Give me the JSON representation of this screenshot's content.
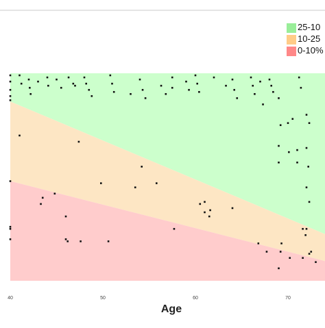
{
  "chart_data": {
    "type": "scatter",
    "xlabel": "Age",
    "ylabel": "",
    "xlim": [
      40,
      74
    ],
    "ylim": [
      0,
      100
    ],
    "x_ticks": [
      "40",
      "50",
      "60",
      "70"
    ],
    "legend_position": "top-right",
    "bands": [
      {
        "name": "25-10",
        "color": "#ccffcc",
        "legend_color": "#99ee99"
      },
      {
        "name": "10-25",
        "color": "#fde6c4",
        "legend_color": "#ffcc88"
      },
      {
        "name": "0-10%",
        "color": "#ffcccc",
        "legend_color": "#ff8888"
      }
    ],
    "band_boundaries": {
      "upper": {
        "at_40": 86.4,
        "at_74": 22.5
      },
      "lower": {
        "at_40": 48.0,
        "at_74": 9.5
      }
    },
    "points": [
      {
        "x": 40.0,
        "y": 99
      },
      {
        "x": 40.0,
        "y": 96
      },
      {
        "x": 40.0,
        "y": 92
      },
      {
        "x": 40.0,
        "y": 89
      },
      {
        "x": 40.0,
        "y": 87
      },
      {
        "x": 40.0,
        "y": 48
      },
      {
        "x": 40.0,
        "y": 26
      },
      {
        "x": 40.0,
        "y": 25
      },
      {
        "x": 40.0,
        "y": 20
      },
      {
        "x": 41.0,
        "y": 99
      },
      {
        "x": 41.2,
        "y": 95
      },
      {
        "x": 41.0,
        "y": 70
      },
      {
        "x": 42.0,
        "y": 97
      },
      {
        "x": 42.1,
        "y": 93
      },
      {
        "x": 42.2,
        "y": 90
      },
      {
        "x": 43.0,
        "y": 96
      },
      {
        "x": 43.5,
        "y": 40
      },
      {
        "x": 43.3,
        "y": 37
      },
      {
        "x": 44.0,
        "y": 98
      },
      {
        "x": 44.1,
        "y": 94
      },
      {
        "x": 44.8,
        "y": 42
      },
      {
        "x": 45.0,
        "y": 97
      },
      {
        "x": 45.5,
        "y": 93
      },
      {
        "x": 46.0,
        "y": 31
      },
      {
        "x": 46.3,
        "y": 98
      },
      {
        "x": 46.8,
        "y": 95
      },
      {
        "x": 46.0,
        "y": 20
      },
      {
        "x": 46.2,
        "y": 19
      },
      {
        "x": 47.0,
        "y": 94
      },
      {
        "x": 47.4,
        "y": 67
      },
      {
        "x": 47.6,
        "y": 19
      },
      {
        "x": 48.0,
        "y": 98
      },
      {
        "x": 48.2,
        "y": 95
      },
      {
        "x": 48.5,
        "y": 92
      },
      {
        "x": 48.8,
        "y": 89
      },
      {
        "x": 49.8,
        "y": 47
      },
      {
        "x": 50.6,
        "y": 19
      },
      {
        "x": 50.8,
        "y": 99
      },
      {
        "x": 51.0,
        "y": 95
      },
      {
        "x": 51.2,
        "y": 91
      },
      {
        "x": 53.0,
        "y": 90
      },
      {
        "x": 53.5,
        "y": 45
      },
      {
        "x": 54.0,
        "y": 97
      },
      {
        "x": 54.3,
        "y": 92
      },
      {
        "x": 54.6,
        "y": 88
      },
      {
        "x": 54.2,
        "y": 55
      },
      {
        "x": 55.8,
        "y": 47
      },
      {
        "x": 56.3,
        "y": 94
      },
      {
        "x": 56.8,
        "y": 90
      },
      {
        "x": 57.5,
        "y": 98
      },
      {
        "x": 57.5,
        "y": 93
      },
      {
        "x": 57.7,
        "y": 25
      },
      {
        "x": 59.0,
        "y": 96
      },
      {
        "x": 59.3,
        "y": 92
      },
      {
        "x": 60.0,
        "y": 99
      },
      {
        "x": 60.2,
        "y": 95
      },
      {
        "x": 60.4,
        "y": 91
      },
      {
        "x": 60.5,
        "y": 37
      },
      {
        "x": 61.0,
        "y": 38
      },
      {
        "x": 61.0,
        "y": 33
      },
      {
        "x": 61.6,
        "y": 34
      },
      {
        "x": 61.5,
        "y": 31
      },
      {
        "x": 62.0,
        "y": 98
      },
      {
        "x": 63.3,
        "y": 94
      },
      {
        "x": 64.0,
        "y": 97
      },
      {
        "x": 64.2,
        "y": 92
      },
      {
        "x": 64.5,
        "y": 88
      },
      {
        "x": 64.0,
        "y": 35
      },
      {
        "x": 66.0,
        "y": 98
      },
      {
        "x": 66.2,
        "y": 94
      },
      {
        "x": 66.4,
        "y": 90
      },
      {
        "x": 67.0,
        "y": 96
      },
      {
        "x": 67.3,
        "y": 85
      },
      {
        "x": 66.8,
        "y": 18
      },
      {
        "x": 67.7,
        "y": 14
      },
      {
        "x": 68.0,
        "y": 97
      },
      {
        "x": 68.2,
        "y": 94
      },
      {
        "x": 68.4,
        "y": 91
      },
      {
        "x": 69.0,
        "y": 88
      },
      {
        "x": 69.2,
        "y": 75
      },
      {
        "x": 69.0,
        "y": 65
      },
      {
        "x": 69.0,
        "y": 57
      },
      {
        "x": 69.3,
        "y": 18
      },
      {
        "x": 69.2,
        "y": 14
      },
      {
        "x": 69.0,
        "y": 6
      },
      {
        "x": 70.0,
        "y": 76
      },
      {
        "x": 70.1,
        "y": 62
      },
      {
        "x": 70.5,
        "y": 78
      },
      {
        "x": 70.2,
        "y": 11
      },
      {
        "x": 71.2,
        "y": 98
      },
      {
        "x": 71.4,
        "y": 93
      },
      {
        "x": 71.6,
        "y": 25
      },
      {
        "x": 71.9,
        "y": 22
      },
      {
        "x": 71.0,
        "y": 63
      },
      {
        "x": 71.0,
        "y": 57
      },
      {
        "x": 71.6,
        "y": 11
      },
      {
        "x": 72.0,
        "y": 64
      },
      {
        "x": 72.2,
        "y": 55
      },
      {
        "x": 72.0,
        "y": 45
      },
      {
        "x": 72.3,
        "y": 38
      },
      {
        "x": 72.0,
        "y": 80
      },
      {
        "x": 72.3,
        "y": 76
      },
      {
        "x": 72.0,
        "y": 25
      },
      {
        "x": 72.3,
        "y": 13
      },
      {
        "x": 73.0,
        "y": 9
      },
      {
        "x": 72.5,
        "y": 14
      }
    ]
  }
}
